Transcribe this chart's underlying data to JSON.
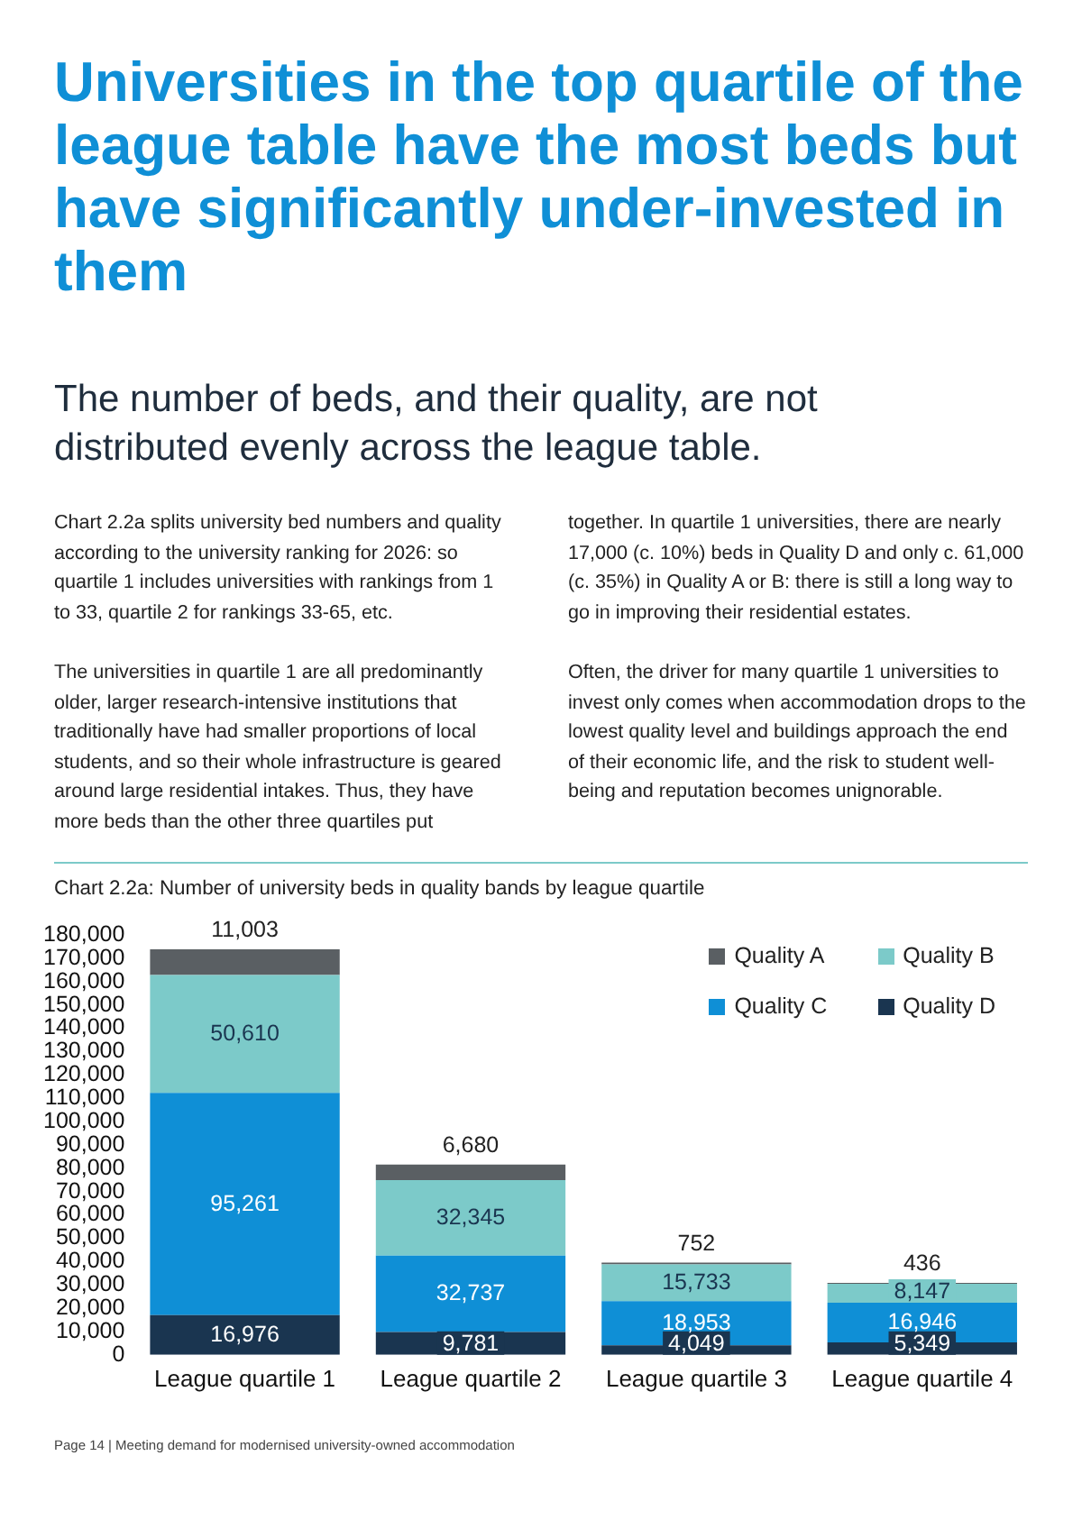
{
  "chart_data": {
    "type": "bar",
    "title": "Universities in the top quartile of the league table have the most beds but have significantly under-invested in them",
    "subtitle": "The number of beds, and their quality, are not distributed evenly across the league table.",
    "annotations": [
      "Chart 2.2a splits university bed numbers and quality according to the university ranking for 2026: so quartile 1 includes universities with rankings from 1 to 33, quartile 2 for rankings 33-65, etc.",
      "The universities in quartile 1 are all predominantly older, larger research-intensive institutions that traditionally have had smaller proportions of local students, and so their whole infrastructure is geared around large residential intakes. Thus, they have more beds than the other three quartiles put",
      "together. In quartile 1 universities, there are nearly 17,000 (c. 10%) beds in Quality D and only c. 61,000 (c. 35%) in Quality A or B: there is still a long way to go in improving their residential estates.",
      "Often, the driver for many quartile 1 universities to invest only comes when accommodation drops to the lowest quality level and buildings approach the end of their economic life, and the risk to student well-being and reputation becomes unignorable.",
      "Chart 2.2a: Number of university beds in quality bands by league quartile",
      "Page 14 | Meeting demand for modernised university-owned accommodation"
    ],
    "categories": [
      "League quartile 1",
      "League quartile 2",
      "League quartile 3",
      "League quartile 4"
    ],
    "stacked": true,
    "grid": false,
    "legend": "top right",
    "ylim": [
      0,
      180000
    ],
    "yticks": [
      {
        "value": 0,
        "label": "0"
      },
      {
        "value": 10000,
        "label": "10,000"
      },
      {
        "value": 20000,
        "label": "20,000"
      },
      {
        "value": 30000,
        "label": "30,000"
      },
      {
        "value": 40000,
        "label": "40,000"
      },
      {
        "value": 50000,
        "label": "50,000"
      },
      {
        "value": 60000,
        "label": "60,000"
      },
      {
        "value": 70000,
        "label": "70,000"
      },
      {
        "value": 80000,
        "label": "80,000"
      },
      {
        "value": 90000,
        "label": "90,000"
      },
      {
        "value": 100000,
        "label": "100,000"
      },
      {
        "value": 110000,
        "label": "110,000"
      },
      {
        "value": 120000,
        "label": "120,000"
      },
      {
        "value": 130000,
        "label": "130,000"
      },
      {
        "value": 140000,
        "label": "140,000"
      },
      {
        "value": 150000,
        "label": "150,000"
      },
      {
        "value": 160000,
        "label": "160,000"
      },
      {
        "value": 170000,
        "label": "170,000"
      },
      {
        "value": 180000,
        "label": "180,000"
      }
    ],
    "series": [
      {
        "name": "Quality D",
        "color": "#1a3550",
        "values": [
          16976,
          9781,
          4049,
          5349
        ],
        "value_labels": [
          "16,976",
          "9,781",
          "4,049",
          "5,349"
        ]
      },
      {
        "name": "Quality C",
        "color": "#0f8fd6",
        "values": [
          95261,
          32737,
          18953,
          16946
        ],
        "value_labels": [
          "95,261",
          "32,737",
          "18,953",
          "16,946"
        ]
      },
      {
        "name": "Quality B",
        "color": "#7ccac9",
        "values": [
          50610,
          32345,
          15733,
          8147
        ],
        "value_labels": [
          "50,610",
          "32,345",
          "15,733",
          "8,147"
        ]
      },
      {
        "name": "Quality A",
        "color": "#5a5f63",
        "values": [
          11003,
          6680,
          752,
          436
        ],
        "value_labels": [
          "11,003",
          "6,680",
          "752",
          "436"
        ]
      }
    ]
  }
}
